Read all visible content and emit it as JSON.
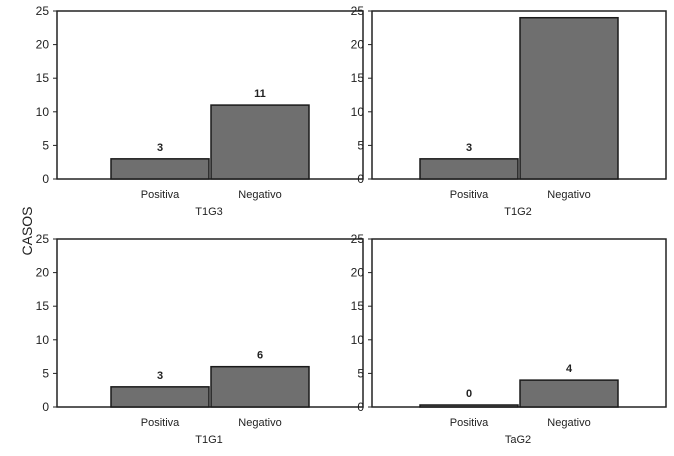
{
  "chart_data": {
    "type": "bar",
    "ylabel": "CASOS",
    "ylim": [
      0,
      25
    ],
    "yticks": [
      0,
      5,
      10,
      15,
      20,
      25
    ],
    "colors": {
      "bar_fill": "#6f6f6f",
      "bar_stroke": "#1a1a1a",
      "frame": "#222222"
    },
    "panels": [
      {
        "title": "T1G3",
        "categories": [
          "Positiva",
          "Negativo"
        ],
        "values": [
          3,
          11
        ],
        "data_labels": [
          "3",
          "11"
        ]
      },
      {
        "title": "T1G2",
        "categories": [
          "Positiva",
          "Negativo"
        ],
        "values": [
          3,
          24
        ],
        "data_labels": [
          "3",
          ""
        ]
      },
      {
        "title": "T1G1",
        "categories": [
          "Positiva",
          "Negativo"
        ],
        "values": [
          3,
          6
        ],
        "data_labels": [
          "3",
          "6"
        ]
      },
      {
        "title": "TaG2",
        "categories": [
          "Positiva",
          "Negativo"
        ],
        "values": [
          0,
          4
        ],
        "data_labels": [
          "0",
          "4"
        ]
      }
    ]
  }
}
